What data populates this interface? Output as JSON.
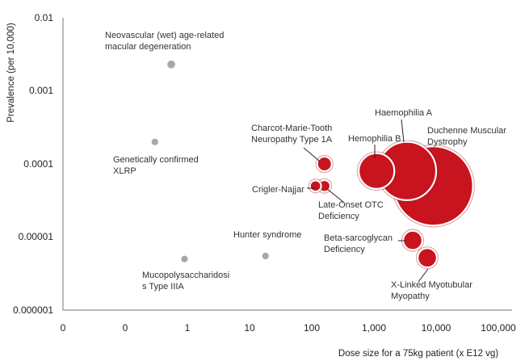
{
  "chart_data": {
    "type": "bubble",
    "xlabel": "Dose size for a 75kg patient (x E12 vg)",
    "ylabel": "Prevalence (per 10,000)",
    "x_scale": "log",
    "y_scale": "log",
    "x_ticks": [
      "0",
      "0",
      "1",
      "10",
      "100",
      "1,000",
      "10,000",
      "100,000"
    ],
    "y_ticks": [
      "0.01",
      "0.001",
      "0.0001",
      "0.00001",
      "0.000001"
    ],
    "ylim": [
      1e-06,
      0.01
    ],
    "grid": false,
    "colors": {
      "small_point": "#a8a8a8",
      "bubble_fill": "#c8141e",
      "bubble_edge": "#9a0e16",
      "axis": "#777777"
    },
    "points": [
      {
        "name": "Neovascular (wet) age-related macular degeneration",
        "label_lines": [
          "Neovascular (wet) age-related",
          "macular degeneration"
        ],
        "x": 0.55,
        "y": 0.0023,
        "size": 0.1
      },
      {
        "name": "Genetically confirmed XLRP",
        "label_lines": [
          "Genetically confirmed",
          "XLRP"
        ],
        "x": 0.3,
        "y": 0.0002,
        "size": 0.05
      },
      {
        "name": "Mucopolysaccharidosis Type IIIA",
        "label_lines": [
          "Mucopolysaccharidosi",
          "s Type IIIA"
        ],
        "x": 0.9,
        "y": 5e-06,
        "size": 0.05
      },
      {
        "name": "Hunter syndrome",
        "label_lines": [
          "Hunter syndrome"
        ],
        "x": 18,
        "y": 5.5e-06,
        "size": 0.05
      },
      {
        "name": "Charcot-Marie-Tooth Neuropathy Type 1A",
        "label_lines": [
          "Charcot-Marie-Tooth",
          "Neuropathy Type 1A"
        ],
        "x": 160,
        "y": 0.0001,
        "size": 0.6
      },
      {
        "name": "Crigler-Najjar",
        "label_lines": [
          "Crigler-Najjar"
        ],
        "x": 115,
        "y": 5e-05,
        "size": 0.25
      },
      {
        "name": "Late-Onset OTC Deficiency",
        "label_lines": [
          "Late-Onset OTC",
          "Deficiency"
        ],
        "x": 160,
        "y": 5e-05,
        "size": 0.3
      },
      {
        "name": "Hemophilia B",
        "label_lines": [
          "Hemophilia B"
        ],
        "x": 1100,
        "y": 8e-05,
        "size": 6
      },
      {
        "name": "Haemophilia A",
        "label_lines": [
          "Haemophilia A"
        ],
        "x": 3400,
        "y": 8e-05,
        "size": 18
      },
      {
        "name": "Duchenne Muscular Dystrophy",
        "label_lines": [
          "Duchenne Muscular",
          "Dystrophy"
        ],
        "x": 9000,
        "y": 5e-05,
        "size": 35
      },
      {
        "name": "Beta-sarcoglycan Deficiency",
        "label_lines": [
          "Beta-sarcoglycan",
          "Deficiency"
        ],
        "x": 4200,
        "y": 9e-06,
        "size": 1.3
      },
      {
        "name": "X-Linked Myotubular Myopathy",
        "label_lines": [
          "X-Linked Myotubular",
          "Myopathy"
        ],
        "x": 7200,
        "y": 5.2e-06,
        "size": 1.3
      }
    ]
  }
}
